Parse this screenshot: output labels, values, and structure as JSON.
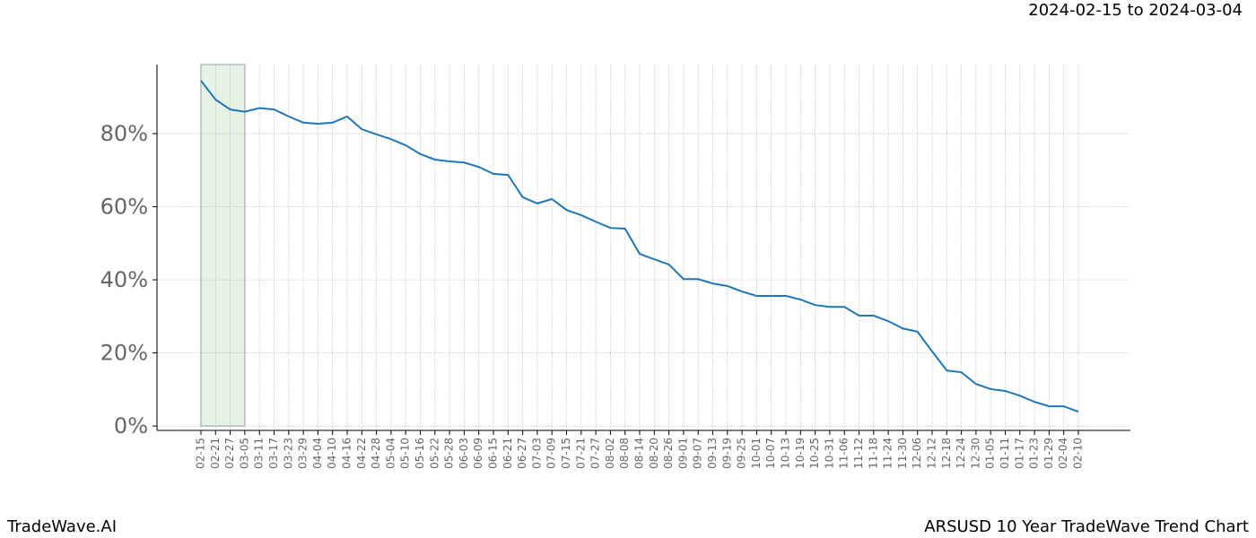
{
  "chart_data": {
    "type": "line",
    "title": "2024-02-15 to 2024-03-04",
    "footer_left": "TradeWave.AI",
    "footer_right": "ARSUSD 10 Year TradeWave Trend Chart",
    "categories": [
      "02-15",
      "02-21",
      "02-27",
      "03-05",
      "03-11",
      "03-17",
      "03-23",
      "03-29",
      "04-04",
      "04-10",
      "04-16",
      "04-22",
      "04-28",
      "05-04",
      "05-10",
      "05-16",
      "05-22",
      "05-28",
      "06-03",
      "06-09",
      "06-15",
      "06-21",
      "06-27",
      "07-03",
      "07-09",
      "07-15",
      "07-21",
      "07-27",
      "08-02",
      "08-08",
      "08-14",
      "08-20",
      "08-26",
      "09-01",
      "09-07",
      "09-13",
      "09-19",
      "09-25",
      "10-01",
      "10-07",
      "10-13",
      "10-19",
      "10-25",
      "10-31",
      "11-06",
      "11-12",
      "11-18",
      "11-24",
      "11-30",
      "12-06",
      "12-12",
      "12-18",
      "12-24",
      "12-30",
      "01-05",
      "01-11",
      "01-17",
      "01-23",
      "01-29",
      "02-04",
      "02-10"
    ],
    "series": [
      {
        "color": "#1f77b4",
        "values": [
          94.5,
          89.3,
          86.6,
          86,
          87,
          86.6,
          84.7,
          83,
          82.7,
          83,
          84.7,
          81.2,
          79.8,
          78.5,
          76.8,
          74.4,
          72.9,
          72.4,
          72.1,
          70.9,
          69,
          68.7,
          62.6,
          60.9,
          62.1,
          59.1,
          57.7,
          55.9,
          54.2,
          54,
          47.1,
          45.6,
          44.2,
          40.2,
          40.2,
          39,
          38.3,
          36.8,
          35.6,
          35.6,
          35.6,
          34.6,
          33.1,
          32.6,
          32.6,
          30.2,
          30.2,
          28.7,
          26.7,
          25.8,
          20.4,
          15.2,
          14.7,
          11.5,
          10.1,
          9.6,
          8.3,
          6.6,
          5.4,
          5.4,
          3.9
        ]
      }
    ],
    "shaded_range": [
      "02-15",
      "03-05"
    ],
    "shade_color": "#e5f2e5",
    "ylim": [
      -1.2,
      98.9
    ],
    "yticks": [
      {
        "value": 0,
        "label": "0%"
      },
      {
        "value": 20,
        "label": "20%"
      },
      {
        "value": 40,
        "label": "40%"
      },
      {
        "value": 60,
        "label": "60%"
      },
      {
        "value": 80,
        "label": "80%"
      }
    ],
    "grid": true
  }
}
